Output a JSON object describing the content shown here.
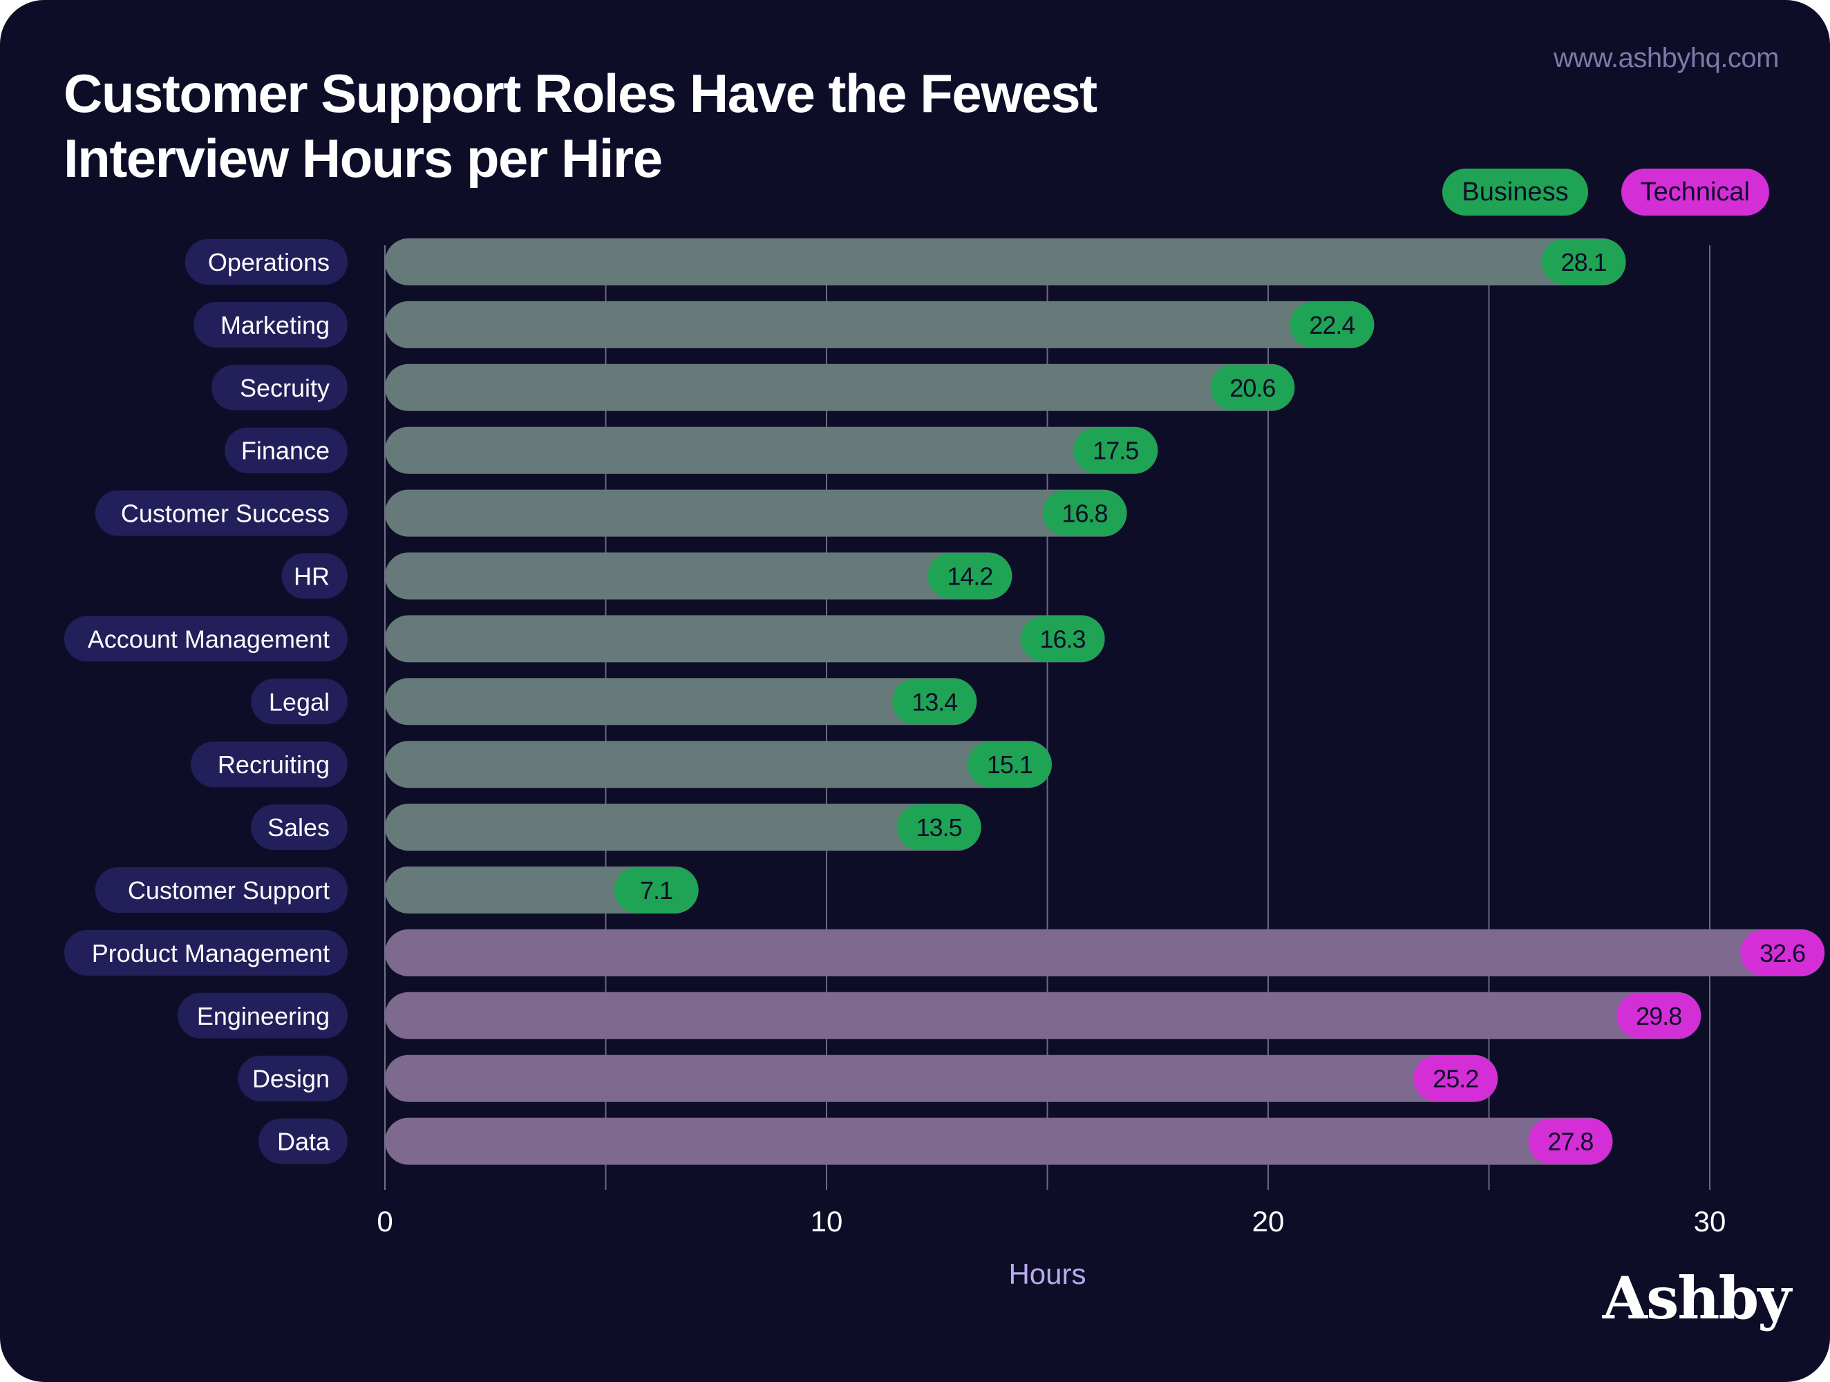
{
  "header": {
    "title_line1": "Customer Support Roles Have the Fewest",
    "title_line2": "Interview Hours per Hire",
    "source": "www.ashbyhq.com"
  },
  "legend": {
    "business_label": "Business",
    "technical_label": "Technical"
  },
  "brand": {
    "name": "Ashby"
  },
  "colors": {
    "background": "#0e0d28",
    "business_bar": "#677a7a",
    "technical_bar": "#7d6a8e",
    "business_badge": "#1ea454",
    "technical_badge": "#d42ed7",
    "category_pill": "#221f5a",
    "axis_label": "#b9abf0",
    "grid": "#b4b4c6"
  },
  "chart_data": {
    "type": "bar",
    "orientation": "horizontal",
    "title": "Customer Support Roles Have the Fewest Interview Hours per Hire",
    "xlabel": "Hours",
    "ylabel": "",
    "xlim": [
      0,
      30
    ],
    "x_ticks": [
      0,
      10,
      20,
      30
    ],
    "grid": true,
    "legend_position": "top-right",
    "categories": [
      "Operations",
      "Marketing",
      "Secruity",
      "Finance",
      "Customer Success",
      "HR",
      "Account Management",
      "Legal",
      "Recruiting",
      "Sales",
      "Customer Support",
      "Product Management",
      "Engineering",
      "Design",
      "Data"
    ],
    "values": [
      28.1,
      22.4,
      20.6,
      17.5,
      16.8,
      14.2,
      16.3,
      13.4,
      15.1,
      13.5,
      7.1,
      32.6,
      29.8,
      25.2,
      27.8
    ],
    "value_labels": [
      "28.1",
      "22.4",
      "20.6",
      "17.5",
      "16.8",
      "14.2",
      "16.3",
      "13.4",
      "15.1",
      "13.5",
      "7.1",
      "32.6",
      "29.8",
      "25.2",
      "27.8"
    ],
    "groups": [
      "Business",
      "Business",
      "Business",
      "Business",
      "Business",
      "Business",
      "Business",
      "Business",
      "Business",
      "Business",
      "Business",
      "Technical",
      "Technical",
      "Technical",
      "Technical"
    ],
    "series": [
      {
        "name": "Business",
        "categories": [
          "Operations",
          "Marketing",
          "Secruity",
          "Finance",
          "Customer Success",
          "HR",
          "Account Management",
          "Legal",
          "Recruiting",
          "Sales",
          "Customer Support"
        ]
      },
      {
        "name": "Technical",
        "categories": [
          "Product Management",
          "Engineering",
          "Design",
          "Data"
        ]
      }
    ]
  }
}
